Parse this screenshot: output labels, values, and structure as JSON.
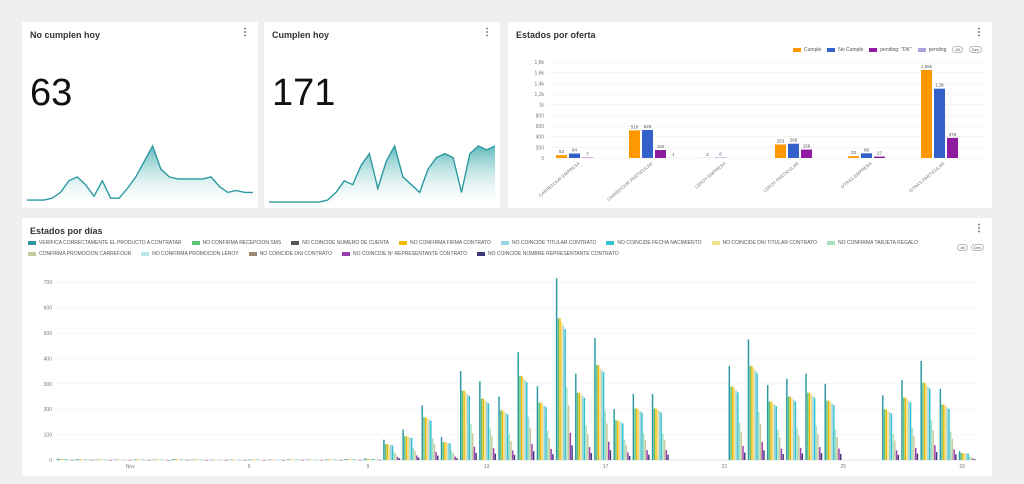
{
  "cards": {
    "no_cumplen": {
      "title": "No cumplen hoy",
      "value": "63"
    },
    "cumplen": {
      "title": "Cumplen hoy",
      "value": "171"
    },
    "estados_oferta": {
      "title": "Estados por oferta"
    },
    "estados_dias": {
      "title": "Estados por días"
    }
  },
  "colors": {
    "teal": "#2a9aa0",
    "teal_fill": "#4fb3b5",
    "orange": "#ff9800",
    "blue": "#3461c9",
    "purple": "#8e1ba0",
    "lavender": "#a9a4dd"
  },
  "icons": {
    "menu": "⋮"
  },
  "sparkline_no_cumplen": [
    2,
    2,
    2,
    3,
    6,
    12,
    14,
    10,
    4,
    12,
    3,
    3,
    8,
    14,
    22,
    30,
    18,
    14,
    13,
    13,
    13,
    13,
    14,
    9,
    6,
    7,
    6,
    6
  ],
  "sparkline_cumplen": [
    1,
    1,
    1,
    1,
    1,
    1,
    1,
    2,
    6,
    12,
    10,
    20,
    26,
    8,
    22,
    30,
    14,
    10,
    6,
    18,
    24,
    26,
    24,
    6,
    26,
    30,
    28,
    30
  ],
  "oferta_pills": [
    "All",
    "Des"
  ],
  "chart_data": [
    {
      "type": "bar",
      "title": "Estados por oferta",
      "categories": [
        "CARREFOUR EMPRESA",
        "CARREFOUR PARTICULAR",
        "LEROY EMPRESA",
        "LEROY PARTICULAR",
        "OTRAS EMPRESA",
        "OTRAS PARTICULAR"
      ],
      "series": [
        {
          "name": "Cumple",
          "color": "#ff9800",
          "values": [
            53,
            518,
            2,
            253,
            33,
            1650
          ]
        },
        {
          "name": "No Cumple",
          "color": "#3461c9",
          "values": [
            84,
            525,
            6,
            268,
            88,
            1300
          ]
        },
        {
          "name": "pending: \"OK\"",
          "color": "#8e1ba0",
          "values": [
            7,
            150,
            0,
            158,
            27,
            378
          ]
        },
        {
          "name": "pending",
          "color": "#a9a4dd",
          "values": [
            0,
            1,
            0,
            0,
            0,
            0
          ]
        }
      ],
      "value_labels": [
        [
          "53",
          "84",
          "7",
          ""
        ],
        [
          "518",
          "525",
          "150",
          "1"
        ],
        [
          "2",
          "6",
          "",
          ""
        ],
        [
          "253",
          "268",
          "158",
          ""
        ],
        [
          "33",
          "88",
          "27",
          ""
        ],
        [
          "1,65k",
          "1,3k",
          "378",
          ""
        ]
      ],
      "yticks": [
        "0",
        "200",
        "400",
        "600",
        "800",
        "1k",
        "1,2k",
        "1,4k",
        "1,6k",
        "1,8k"
      ],
      "ylim": [
        0,
        1800
      ],
      "legend": "top-right"
    },
    {
      "type": "bar",
      "title": "Estados por días",
      "legend_row1": [
        {
          "name": "VERIFICA CORRECTAMENTE EL PRODUCTO A CONTRATAR",
          "color": "#2a9aa0"
        },
        {
          "name": "NO CONFIRMA RECEPCION SMS",
          "color": "#5ec47a"
        },
        {
          "name": "NO COINCIDE NUMERO DE CUENTA",
          "color": "#555555"
        },
        {
          "name": "NO CONFIRMA FIRMA CONTRATO",
          "color": "#f5b800"
        },
        {
          "name": "NO COINCIDE TITULAR CONTRATO",
          "color": "#9ad3e0"
        },
        {
          "name": "NO COINCIDE FECHA NACIMIENTO",
          "color": "#33c2c9"
        },
        {
          "name": "NO COINCIDE DNI TITULAR CONTRATO",
          "color": "#f2e08a"
        },
        {
          "name": "NO CONFIRMA TARJETA REGALO",
          "color": "#a8e0c0"
        }
      ],
      "legend_row2": [
        {
          "name": "CONFIRMA PROMOCION CARREFOUR",
          "color": "#c9c9a0"
        },
        {
          "name": "NO CONFIRMA PROMOCION LEROY",
          "color": "#b8e8e8"
        },
        {
          "name": "NO COINCIDE DNI CONTRATO",
          "color": "#a08870"
        },
        {
          "name": "NO COINCIDE Nº REPRESENTANTE CONTRATO",
          "color": "#9b3fb0"
        },
        {
          "name": "NO COINCIDE NOMBRE REPRESENTANTE CONTRATO",
          "color": "#3a3a7a"
        }
      ],
      "dias_pills": [
        "All",
        "Des"
      ],
      "yticks": [
        "0",
        "100",
        "200",
        "300",
        "400",
        "500",
        "600",
        "700"
      ],
      "ylim": [
        0,
        740
      ],
      "xticks": [
        "Nov",
        "5",
        "9",
        "13",
        "17",
        "21",
        "25",
        "29"
      ],
      "days_total": 31,
      "top_values": [
        5,
        4,
        2,
        2,
        3,
        2,
        4,
        2,
        1,
        2,
        3,
        2,
        3,
        2,
        3,
        4,
        6,
        80,
        120,
        215,
        90,
        350,
        310,
        250,
        425,
        290,
        715,
        340,
        480,
        200,
        260,
        260,
        0,
        0,
        0,
        370,
        475,
        295,
        320,
        340,
        300,
        0,
        0,
        255,
        315,
        390,
        280,
        35
      ]
    }
  ]
}
